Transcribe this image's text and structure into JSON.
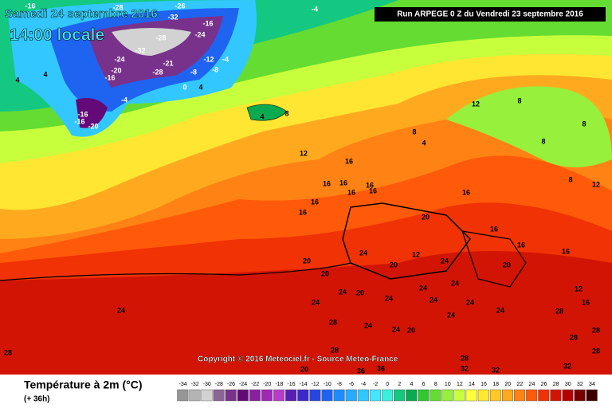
{
  "header": {
    "title": "Samedi 24 septembre 2016",
    "time": "14:00 locale",
    "run": "Run ARPEGE 0 Z du Vendredi 23 septembre 2016"
  },
  "copyright": "Copyright © 2016 Meteociel.fr - Source Meteo-France",
  "legend": {
    "label": "Température à 2m (°C)",
    "lead": "(+ 36h)",
    "values": [
      -34,
      -32,
      -30,
      -28,
      -26,
      -24,
      -22,
      -20,
      -18,
      -16,
      -14,
      -12,
      -10,
      -8,
      -6,
      -4,
      -2,
      0,
      2,
      4,
      6,
      8,
      10,
      12,
      14,
      16,
      18,
      20,
      22,
      24,
      26,
      28,
      30,
      32,
      34
    ],
    "colors": [
      "#969696",
      "#b4b4b4",
      "#d2d2d2",
      "#8c6496",
      "#78328c",
      "#640a78",
      "#8c1ea0",
      "#a028b4",
      "#b43cc8",
      "#5a1eb4",
      "#3c28c8",
      "#2846dc",
      "#1e64f0",
      "#1e8cff",
      "#28aaff",
      "#32c8ff",
      "#46e6ff",
      "#3cf0dc",
      "#14c882",
      "#0aaa50",
      "#32c832",
      "#64dc32",
      "#96f03c",
      "#c8ff3c",
      "#ffff3c",
      "#ffe632",
      "#ffc828",
      "#ffaa1e",
      "#ff8214",
      "#ff5a0a",
      "#f03205",
      "#d21405",
      "#b40000",
      "#780000",
      "#3c0000"
    ]
  },
  "map_labels": [
    -16,
    -28,
    -26,
    -4,
    -32,
    -16,
    -28,
    -24,
    -32,
    -24,
    -4,
    -12,
    -21,
    -8,
    4,
    -20,
    -28,
    -8,
    4,
    -16,
    0,
    4,
    -4,
    -16,
    -16,
    -20,
    4,
    8,
    12,
    16,
    16,
    16,
    16,
    16,
    16,
    16,
    16,
    16,
    16,
    20,
    16,
    16,
    12,
    8,
    8,
    8,
    8,
    12,
    4,
    8,
    20,
    20,
    24,
    20,
    12,
    24,
    20,
    24,
    24,
    20,
    24,
    24,
    24,
    24,
    24,
    24,
    24,
    28,
    24,
    24,
    20,
    12,
    16,
    28,
    28,
    28,
    28,
    24,
    28,
    20,
    36,
    36,
    28,
    32,
    32,
    32,
    28
  ]
}
